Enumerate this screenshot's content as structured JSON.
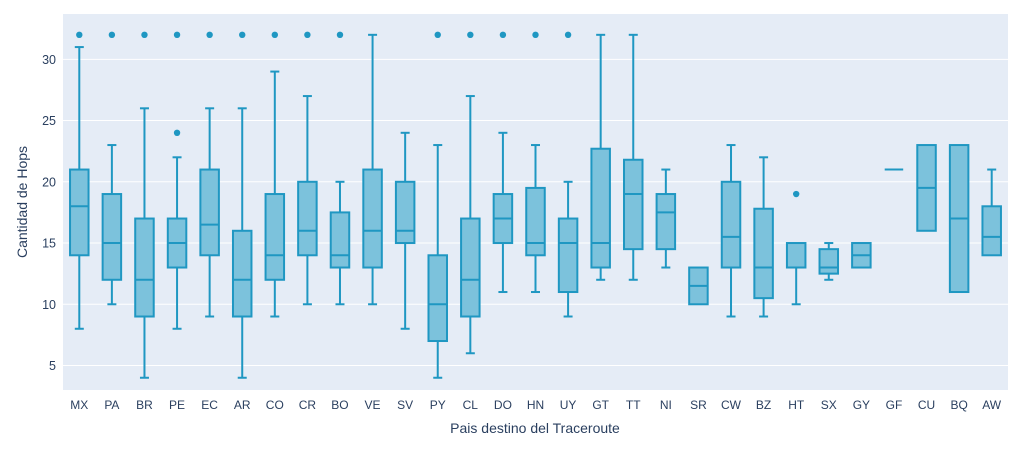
{
  "colors": {
    "box_line": "#1f97c2",
    "box_fill": "#7cc2dc",
    "plot_background": "#e5ecf6",
    "gridline": "#ffffff",
    "text": "#2a3f5f"
  },
  "chart_data": {
    "type": "box",
    "title": "",
    "xlabel": "Pais destino del Traceroute",
    "ylabel": "Cantidad de Hops",
    "ylim": [
      3,
      33.7
    ],
    "y_ticks": [
      5,
      10,
      15,
      20,
      25,
      30
    ],
    "grid": "horizontal gridlines only, white on light blue panel",
    "legend": "none",
    "categories": [
      "MX",
      "PA",
      "BR",
      "PE",
      "EC",
      "AR",
      "CO",
      "CR",
      "BO",
      "VE",
      "SV",
      "PY",
      "CL",
      "DO",
      "HN",
      "UY",
      "GT",
      "TT",
      "NI",
      "SR",
      "CW",
      "BZ",
      "HT",
      "SX",
      "GY",
      "GF",
      "CU",
      "BQ",
      "AW"
    ],
    "boxes": [
      {
        "category": "MX",
        "whisker_low": 8,
        "q1": 14,
        "median": 18,
        "q3": 21,
        "whisker_high": 31,
        "outliers": [
          32
        ]
      },
      {
        "category": "PA",
        "whisker_low": 10,
        "q1": 12,
        "median": 15,
        "q3": 19,
        "whisker_high": 23,
        "outliers": [
          32
        ]
      },
      {
        "category": "BR",
        "whisker_low": 4,
        "q1": 9,
        "median": 12,
        "q3": 17,
        "whisker_high": 26,
        "outliers": [
          32
        ]
      },
      {
        "category": "PE",
        "whisker_low": 8,
        "q1": 13,
        "median": 15,
        "q3": 17,
        "whisker_high": 22,
        "outliers": [
          24,
          32
        ]
      },
      {
        "category": "EC",
        "whisker_low": 9,
        "q1": 14,
        "median": 16.5,
        "q3": 21,
        "whisker_high": 26,
        "outliers": [
          32
        ]
      },
      {
        "category": "AR",
        "whisker_low": 4,
        "q1": 9,
        "median": 12,
        "q3": 16,
        "whisker_high": 26,
        "outliers": [
          32
        ]
      },
      {
        "category": "CO",
        "whisker_low": 9,
        "q1": 12,
        "median": 14,
        "q3": 19,
        "whisker_high": 29,
        "outliers": [
          32
        ]
      },
      {
        "category": "CR",
        "whisker_low": 10,
        "q1": 14,
        "median": 16,
        "q3": 20,
        "whisker_high": 27,
        "outliers": [
          32
        ]
      },
      {
        "category": "BO",
        "whisker_low": 10,
        "q1": 13,
        "median": 14,
        "q3": 17.5,
        "whisker_high": 20,
        "outliers": [
          32
        ]
      },
      {
        "category": "VE",
        "whisker_low": 10,
        "q1": 13,
        "median": 16,
        "q3": 21,
        "whisker_high": 32,
        "outliers": []
      },
      {
        "category": "SV",
        "whisker_low": 8,
        "q1": 15,
        "median": 16,
        "q3": 20,
        "whisker_high": 24,
        "outliers": []
      },
      {
        "category": "PY",
        "whisker_low": 4,
        "q1": 7,
        "median": 10,
        "q3": 14,
        "whisker_high": 23,
        "outliers": [
          32
        ]
      },
      {
        "category": "CL",
        "whisker_low": 6,
        "q1": 9,
        "median": 12,
        "q3": 17,
        "whisker_high": 27,
        "outliers": [
          32
        ]
      },
      {
        "category": "DO",
        "whisker_low": 11,
        "q1": 15,
        "median": 17,
        "q3": 19,
        "whisker_high": 24,
        "outliers": [
          32
        ]
      },
      {
        "category": "HN",
        "whisker_low": 11,
        "q1": 14,
        "median": 15,
        "q3": 19.5,
        "whisker_high": 23,
        "outliers": [
          32
        ]
      },
      {
        "category": "UY",
        "whisker_low": 9,
        "q1": 11,
        "median": 15,
        "q3": 17,
        "whisker_high": 20,
        "outliers": [
          32
        ]
      },
      {
        "category": "GT",
        "whisker_low": 12,
        "q1": 13,
        "median": 15,
        "q3": 22.7,
        "whisker_high": 32,
        "outliers": []
      },
      {
        "category": "TT",
        "whisker_low": 12,
        "q1": 14.5,
        "median": 19,
        "q3": 21.8,
        "whisker_high": 32,
        "outliers": []
      },
      {
        "category": "NI",
        "whisker_low": 13,
        "q1": 14.5,
        "median": 17.5,
        "q3": 19,
        "whisker_high": 21,
        "outliers": []
      },
      {
        "category": "SR",
        "whisker_low": 10,
        "q1": 10,
        "median": 11.5,
        "q3": 13,
        "whisker_high": 13,
        "outliers": []
      },
      {
        "category": "CW",
        "whisker_low": 9,
        "q1": 13,
        "median": 15.5,
        "q3": 20,
        "whisker_high": 23,
        "outliers": []
      },
      {
        "category": "BZ",
        "whisker_low": 9,
        "q1": 10.5,
        "median": 13,
        "q3": 17.8,
        "whisker_high": 22,
        "outliers": []
      },
      {
        "category": "HT",
        "whisker_low": 10,
        "q1": 13,
        "median": 13,
        "q3": 15,
        "whisker_high": 15,
        "outliers": [
          19
        ]
      },
      {
        "category": "SX",
        "whisker_low": 12,
        "q1": 12.5,
        "median": 13,
        "q3": 14.5,
        "whisker_high": 15,
        "outliers": []
      },
      {
        "category": "GY",
        "whisker_low": 13,
        "q1": 13,
        "median": 14,
        "q3": 15,
        "whisker_high": 15,
        "outliers": []
      },
      {
        "category": "GF",
        "whisker_low": 21,
        "q1": 21,
        "median": 21,
        "q3": 21,
        "whisker_high": 21,
        "outliers": []
      },
      {
        "category": "CU",
        "whisker_low": 16,
        "q1": 16,
        "median": 19.5,
        "q3": 23,
        "whisker_high": 23,
        "outliers": []
      },
      {
        "category": "BQ",
        "whisker_low": 11,
        "q1": 11,
        "median": 17,
        "q3": 23,
        "whisker_high": 23,
        "outliers": []
      },
      {
        "category": "AW",
        "whisker_low": 14,
        "q1": 14,
        "median": 15.5,
        "q3": 18,
        "whisker_high": 21,
        "outliers": []
      }
    ]
  }
}
